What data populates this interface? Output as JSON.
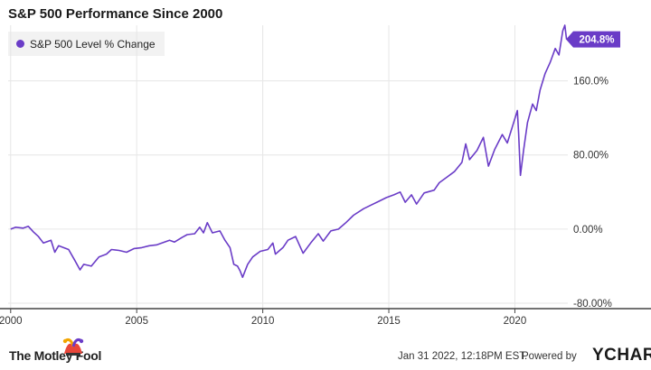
{
  "chart_data": {
    "type": "line",
    "title": "S&P 500 Performance Since 2000",
    "series": [
      {
        "name": "S&P 500 Level % Change",
        "color": "#6a3cc7",
        "points": [
          [
            2000.0,
            0.0
          ],
          [
            2000.2,
            2.0
          ],
          [
            2000.5,
            1.0
          ],
          [
            2000.7,
            3.0
          ],
          [
            2000.9,
            -3.0
          ],
          [
            2001.1,
            -8.0
          ],
          [
            2001.3,
            -15.0
          ],
          [
            2001.6,
            -12.0
          ],
          [
            2001.75,
            -25.0
          ],
          [
            2001.9,
            -18.0
          ],
          [
            2002.1,
            -20.0
          ],
          [
            2002.3,
            -22.0
          ],
          [
            2002.55,
            -34.0
          ],
          [
            2002.75,
            -44.0
          ],
          [
            2002.9,
            -38.0
          ],
          [
            2003.2,
            -40.0
          ],
          [
            2003.5,
            -30.0
          ],
          [
            2003.8,
            -27.0
          ],
          [
            2004.0,
            -22.0
          ],
          [
            2004.3,
            -23.0
          ],
          [
            2004.6,
            -25.0
          ],
          [
            2004.9,
            -21.0
          ],
          [
            2005.2,
            -20.0
          ],
          [
            2005.5,
            -18.0
          ],
          [
            2005.8,
            -17.0
          ],
          [
            2006.0,
            -15.0
          ],
          [
            2006.3,
            -12.0
          ],
          [
            2006.5,
            -14.0
          ],
          [
            2006.8,
            -9.0
          ],
          [
            2007.0,
            -6.0
          ],
          [
            2007.3,
            -5.0
          ],
          [
            2007.5,
            2.0
          ],
          [
            2007.65,
            -4.0
          ],
          [
            2007.8,
            7.0
          ],
          [
            2008.0,
            -4.0
          ],
          [
            2008.3,
            -2.0
          ],
          [
            2008.5,
            -12.0
          ],
          [
            2008.7,
            -20.0
          ],
          [
            2008.85,
            -38.0
          ],
          [
            2009.0,
            -40.0
          ],
          [
            2009.1,
            -45.0
          ],
          [
            2009.2,
            -52.0
          ],
          [
            2009.4,
            -38.0
          ],
          [
            2009.6,
            -30.0
          ],
          [
            2009.9,
            -24.0
          ],
          [
            2010.2,
            -22.0
          ],
          [
            2010.4,
            -15.0
          ],
          [
            2010.5,
            -27.0
          ],
          [
            2010.8,
            -20.0
          ],
          [
            2011.0,
            -12.0
          ],
          [
            2011.3,
            -8.0
          ],
          [
            2011.6,
            -26.0
          ],
          [
            2011.9,
            -15.0
          ],
          [
            2012.2,
            -5.0
          ],
          [
            2012.4,
            -13.0
          ],
          [
            2012.7,
            -2.0
          ],
          [
            2013.0,
            0.0
          ],
          [
            2013.3,
            7.0
          ],
          [
            2013.6,
            15.0
          ],
          [
            2014.0,
            22.0
          ],
          [
            2014.3,
            26.0
          ],
          [
            2014.6,
            30.0
          ],
          [
            2014.9,
            34.0
          ],
          [
            2015.2,
            37.0
          ],
          [
            2015.45,
            40.0
          ],
          [
            2015.65,
            29.0
          ],
          [
            2015.9,
            37.0
          ],
          [
            2016.1,
            27.0
          ],
          [
            2016.4,
            39.0
          ],
          [
            2016.8,
            42.0
          ],
          [
            2017.0,
            50.0
          ],
          [
            2017.3,
            56.0
          ],
          [
            2017.6,
            62.0
          ],
          [
            2017.9,
            72.0
          ],
          [
            2018.05,
            92.0
          ],
          [
            2018.2,
            75.0
          ],
          [
            2018.5,
            85.0
          ],
          [
            2018.75,
            99.0
          ],
          [
            2018.95,
            68.0
          ],
          [
            2019.2,
            86.0
          ],
          [
            2019.5,
            102.0
          ],
          [
            2019.7,
            93.0
          ],
          [
            2019.95,
            115.0
          ],
          [
            2020.1,
            128.0
          ],
          [
            2020.15,
            103.0
          ],
          [
            2020.22,
            58.0
          ],
          [
            2020.35,
            86.0
          ],
          [
            2020.5,
            115.0
          ],
          [
            2020.7,
            135.0
          ],
          [
            2020.85,
            128.0
          ],
          [
            2021.0,
            150.0
          ],
          [
            2021.2,
            168.0
          ],
          [
            2021.4,
            180.0
          ],
          [
            2021.6,
            195.0
          ],
          [
            2021.75,
            188.0
          ],
          [
            2021.9,
            214.0
          ],
          [
            2021.98,
            220.0
          ],
          [
            2022.05,
            204.8
          ]
        ]
      }
    ],
    "last_value_label": "204.8%",
    "xlim": [
      1999.9,
      2022.1
    ],
    "ylim": [
      -80,
      220
    ],
    "x_ticks": [
      {
        "value": 2000,
        "label": "2000"
      },
      {
        "value": 2005,
        "label": "2005"
      },
      {
        "value": 2010,
        "label": "2010"
      },
      {
        "value": 2015,
        "label": "2015"
      },
      {
        "value": 2020,
        "label": "2020"
      }
    ],
    "y_ticks": [
      {
        "value": 160,
        "label": "160.0%"
      },
      {
        "value": 80,
        "label": "80.00%"
      },
      {
        "value": 0,
        "label": "0.00%"
      },
      {
        "value": -80,
        "label": "-80.00%"
      }
    ],
    "grid": true,
    "legend_position": "top-left"
  },
  "footer": {
    "date": "Jan 31 2022, 12:18PM EST.",
    "powered_by": "Powered by",
    "ycharts_brand": "YCHARTS",
    "motley_brand": "The Motley Fool"
  }
}
